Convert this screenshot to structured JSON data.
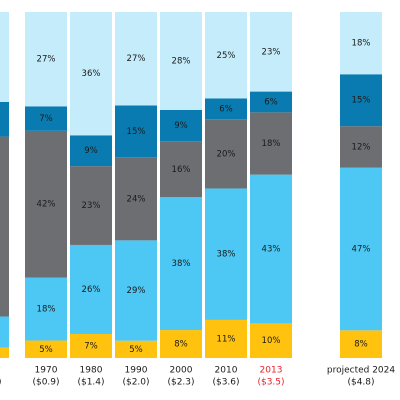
{
  "chart_data": {
    "type": "bar",
    "stacked": true,
    "normalized_percent": true,
    "categories": [
      "1960",
      "1970",
      "1980",
      "1990",
      "2000",
      "2010",
      "2013",
      "projected 2024"
    ],
    "category_sublabels": [
      "($0.6)",
      "($0.9)",
      "($1.4)",
      "($2.0)",
      "($2.3)",
      "($3.6)",
      "($3.5)",
      "($4.8)"
    ],
    "highlight_category": "2013",
    "highlight_color": "#e8202a",
    "series": [
      {
        "values": [
          3,
          5,
          7,
          5,
          8,
          11,
          10,
          8
        ],
        "labels": [
          "3%",
          "5%",
          "7%",
          "5%",
          "8%",
          "11%",
          "10%",
          "8%"
        ],
        "color": "#ffc20e"
      },
      {
        "values": [
          9,
          18,
          26,
          29,
          38,
          38,
          43,
          47
        ],
        "labels": [
          "9%",
          "18%",
          "26%",
          "29%",
          "38%",
          "38%",
          "43%",
          "47%"
        ],
        "color": "#4dc8f4"
      },
      {
        "values": [
          52,
          42,
          23,
          24,
          16,
          20,
          18,
          12
        ],
        "labels": [
          "52%",
          "42%",
          "23%",
          "24%",
          "16%",
          "20%",
          "18%",
          "12%"
        ],
        "color": "#6d6e71"
      },
      {
        "values": [
          10,
          7,
          9,
          15,
          9,
          6,
          6,
          15
        ],
        "labels": [
          "10%",
          "7%",
          "9%",
          "15%",
          "9%",
          "6%",
          "6%",
          "15%"
        ],
        "color": "#0a7bb0"
      },
      {
        "values": [
          26,
          27,
          36,
          27,
          28,
          25,
          23,
          18
        ],
        "labels": [
          "26%",
          "27%",
          "36%",
          "27%",
          "28%",
          "25%",
          "23%",
          "18%"
        ],
        "color": "#c5ecfb"
      }
    ],
    "xlabel": "",
    "ylabel": "",
    "ylim": [
      0,
      100
    ],
    "grid": false,
    "legend": "none"
  }
}
